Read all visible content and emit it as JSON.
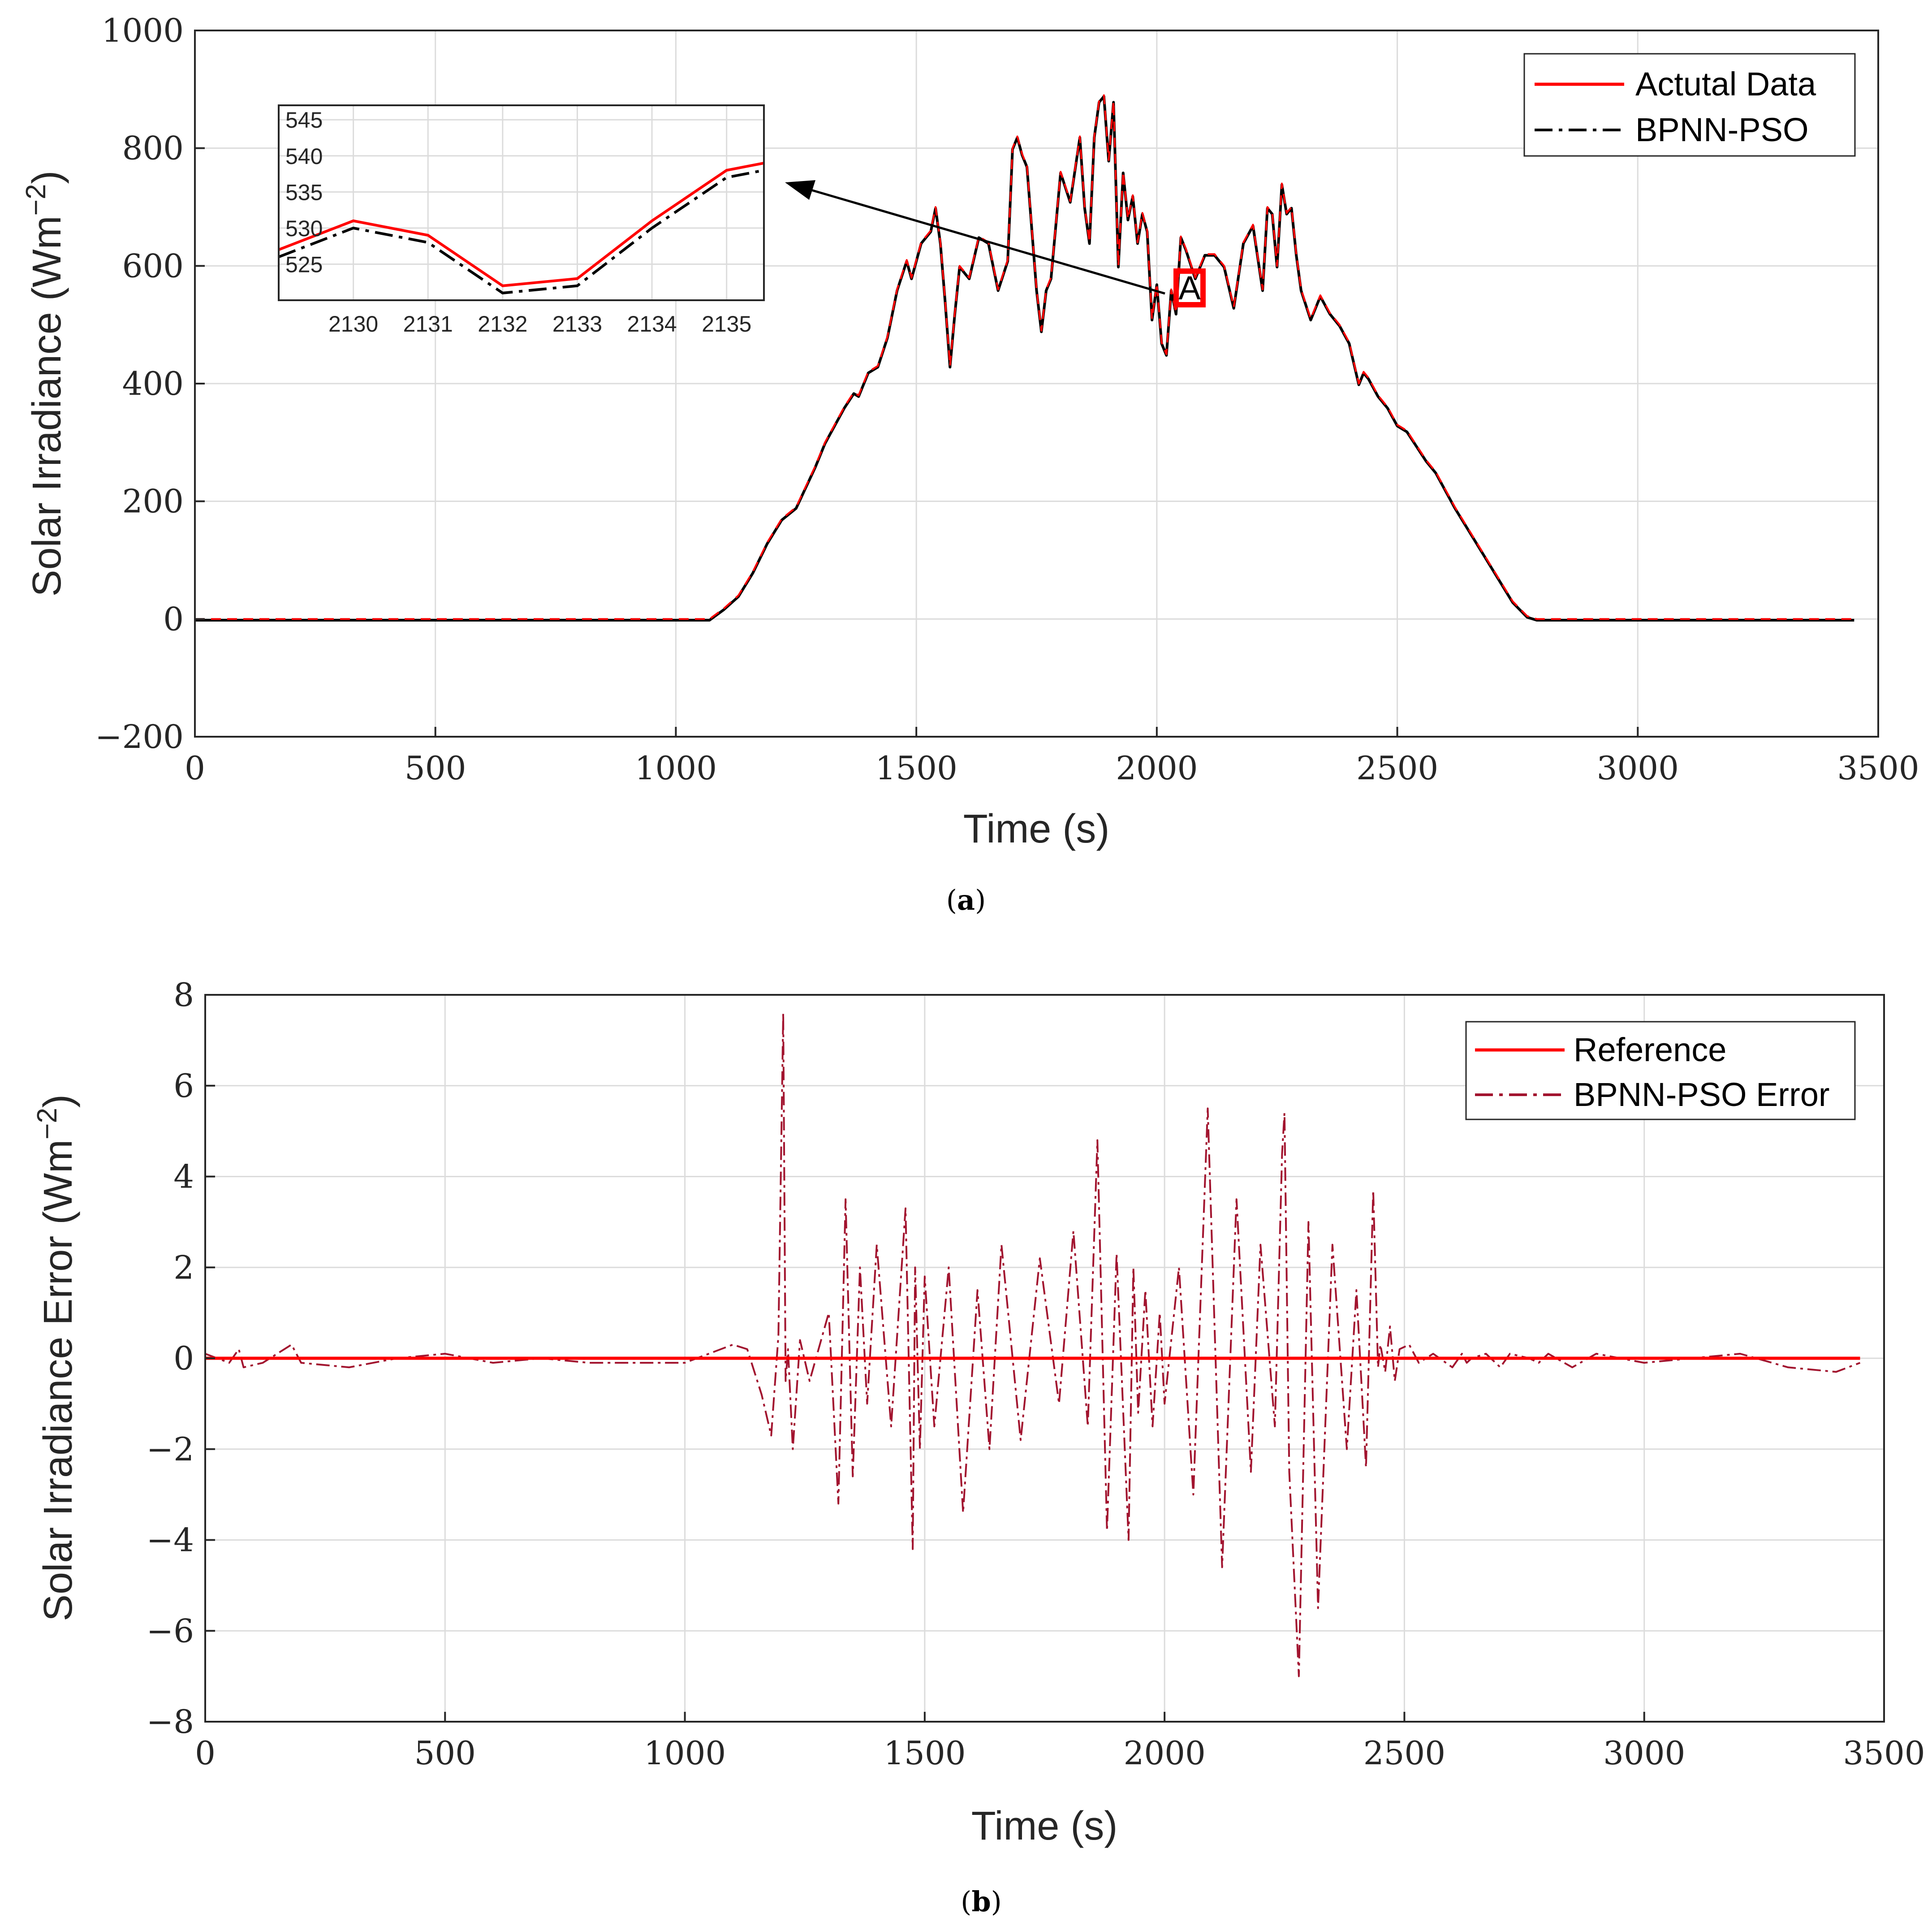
{
  "chart_data": [
    {
      "type": "line",
      "panel": "a",
      "caption": "a",
      "xlabel": "Time (s)",
      "ylabel": "Solar Irradiance (Wm",
      "ylabel_sup": "−2",
      "ylabel_close": ")",
      "xlim": [
        0,
        3500
      ],
      "ylim": [
        -200,
        1000
      ],
      "xticks": [
        "0",
        "500",
        "1000",
        "1500",
        "2000",
        "2500",
        "3000",
        "3500"
      ],
      "yticks": [
        "−200",
        "0",
        "200",
        "400",
        "600",
        "800",
        "1000"
      ],
      "grid": true,
      "legend_position": "top-right",
      "series": [
        {
          "name": "Actutal Data",
          "color": "#ff0000",
          "style": "solid"
        },
        {
          "name": "BPNN-PSO",
          "color": "#000000",
          "style": "dash-dot"
        }
      ],
      "x": [
        0,
        1070,
        1100,
        1130,
        1160,
        1190,
        1220,
        1250,
        1270,
        1290,
        1310,
        1330,
        1350,
        1370,
        1380,
        1400,
        1420,
        1440,
        1460,
        1480,
        1490,
        1510,
        1530,
        1540,
        1550,
        1560,
        1570,
        1580,
        1590,
        1610,
        1630,
        1650,
        1670,
        1690,
        1700,
        1710,
        1720,
        1730,
        1750,
        1760,
        1770,
        1780,
        1800,
        1820,
        1840,
        1850,
        1860,
        1870,
        1880,
        1890,
        1900,
        1910,
        1920,
        1930,
        1940,
        1950,
        1960,
        1970,
        1980,
        1990,
        2000,
        2010,
        2020,
        2030,
        2040,
        2050,
        2060,
        2080,
        2100,
        2120,
        2140,
        2160,
        2180,
        2200,
        2220,
        2230,
        2240,
        2250,
        2260,
        2270,
        2280,
        2290,
        2300,
        2320,
        2340,
        2360,
        2380,
        2400,
        2420,
        2430,
        2440,
        2460,
        2480,
        2500,
        2520,
        2540,
        2560,
        2580,
        2600,
        2620,
        2650,
        2680,
        2710,
        2740,
        2770,
        2790,
        2800,
        3450
      ],
      "values": [
        0,
        0,
        18,
        40,
        80,
        130,
        170,
        190,
        225,
        260,
        300,
        330,
        360,
        385,
        380,
        420,
        430,
        480,
        560,
        610,
        580,
        640,
        660,
        700,
        640,
        540,
        430,
        520,
        600,
        580,
        650,
        640,
        560,
        610,
        800,
        820,
        790,
        770,
        560,
        490,
        560,
        580,
        760,
        710,
        820,
        700,
        640,
        820,
        880,
        890,
        780,
        880,
        600,
        760,
        680,
        720,
        640,
        690,
        660,
        510,
        570,
        470,
        450,
        560,
        520,
        650,
        630,
        580,
        620,
        620,
        600,
        530,
        640,
        670,
        560,
        700,
        690,
        600,
        740,
        690,
        700,
        620,
        560,
        510,
        550,
        520,
        500,
        470,
        400,
        420,
        410,
        380,
        360,
        330,
        320,
        295,
        270,
        250,
        220,
        190,
        150,
        110,
        70,
        30,
        5,
        0,
        0,
        0
      ],
      "inset": {
        "xlim": [
          2129,
          2135.5
        ],
        "ylim": [
          520,
          547
        ],
        "xticks": [
          "2130",
          "2131",
          "2132",
          "2133",
          "2134",
          "2135"
        ],
        "yticks": [
          "525",
          "530",
          "535",
          "540",
          "545"
        ],
        "x": [
          2129,
          2130,
          2131,
          2132,
          2133,
          2134,
          2135,
          2135.5
        ],
        "actual": [
          527,
          531,
          529,
          522,
          523,
          531,
          538,
          539
        ],
        "predicted": [
          526,
          530,
          528,
          521,
          522,
          530,
          537,
          538
        ],
        "annotation": "A"
      }
    },
    {
      "type": "line",
      "panel": "b",
      "caption": "b",
      "xlabel": "Time (s)",
      "ylabel": "Solar Irradiance Error (Wm",
      "ylabel_sup": "−2",
      "ylabel_close": ")",
      "xlim": [
        0,
        3500
      ],
      "ylim": [
        -8,
        8
      ],
      "xticks": [
        "0",
        "500",
        "1000",
        "1500",
        "2000",
        "2500",
        "3000",
        "3500"
      ],
      "yticks": [
        "−8",
        "−6",
        "−4",
        "−2",
        "0",
        "2",
        "4",
        "6",
        "8"
      ],
      "grid": true,
      "legend_position": "top-right",
      "series": [
        {
          "name": "Reference",
          "color": "#ff0000",
          "style": "solid"
        },
        {
          "name": "BPNN-PSO Error",
          "color": "#a2142f",
          "style": "dash-dot"
        }
      ],
      "x": [
        0,
        50,
        70,
        80,
        120,
        180,
        200,
        300,
        400,
        500,
        600,
        700,
        800,
        900,
        1000,
        1050,
        1100,
        1130,
        1160,
        1180,
        1195,
        1205,
        1210,
        1215,
        1225,
        1240,
        1260,
        1300,
        1320,
        1335,
        1350,
        1365,
        1380,
        1400,
        1430,
        1460,
        1475,
        1480,
        1490,
        1500,
        1520,
        1550,
        1580,
        1610,
        1635,
        1660,
        1700,
        1740,
        1780,
        1810,
        1840,
        1860,
        1880,
        1900,
        1925,
        1935,
        1945,
        1960,
        1975,
        1990,
        2000,
        2030,
        2060,
        2090,
        2120,
        2150,
        2180,
        2200,
        2230,
        2245,
        2250,
        2260,
        2280,
        2300,
        2320,
        2350,
        2380,
        2400,
        2420,
        2435,
        2445,
        2450,
        2460,
        2470,
        2480,
        2490,
        2510,
        2530,
        2560,
        2600,
        2620,
        2630,
        2640,
        2670,
        2700,
        2720,
        2760,
        2780,
        2800,
        2850,
        2900,
        2950,
        3000,
        3100,
        3200,
        3300,
        3400,
        3450
      ],
      "values": [
        0.1,
        -0.1,
        0.2,
        -0.2,
        -0.1,
        0.3,
        -0.1,
        -0.2,
        0.0,
        0.1,
        -0.1,
        0.0,
        -0.1,
        -0.1,
        -0.1,
        0.1,
        0.3,
        0.2,
        -0.8,
        -1.7,
        0.5,
        7.6,
        -0.5,
        0.2,
        -2.0,
        0.4,
        -0.5,
        1.0,
        -3.2,
        3.5,
        -2.6,
        2.0,
        -1.0,
        2.5,
        -1.5,
        3.3,
        -4.2,
        2.0,
        -2.0,
        1.8,
        -1.5,
        2.0,
        -3.4,
        1.5,
        -2.0,
        2.5,
        -1.8,
        2.2,
        -1.0,
        2.8,
        -1.5,
        4.8,
        -3.8,
        2.3,
        -4.0,
        2.0,
        -1.2,
        1.5,
        -1.5,
        1.0,
        -1.0,
        2.0,
        -3.0,
        5.5,
        -4.6,
        3.5,
        -2.5,
        2.5,
        -1.5,
        4.5,
        5.4,
        -2.5,
        -7.0,
        3.0,
        -5.5,
        2.5,
        -2.0,
        1.5,
        -2.4,
        3.7,
        -0.2,
        0.3,
        -0.3,
        0.7,
        -0.5,
        0.2,
        0.3,
        -0.1,
        0.1,
        -0.2,
        0.1,
        -0.1,
        0.0,
        0.1,
        -0.2,
        0.1,
        0.0,
        -0.1,
        0.1,
        -0.2,
        0.1,
        0.0,
        -0.1,
        0.0,
        0.1,
        -0.2,
        -0.3,
        -0.1
      ]
    }
  ]
}
